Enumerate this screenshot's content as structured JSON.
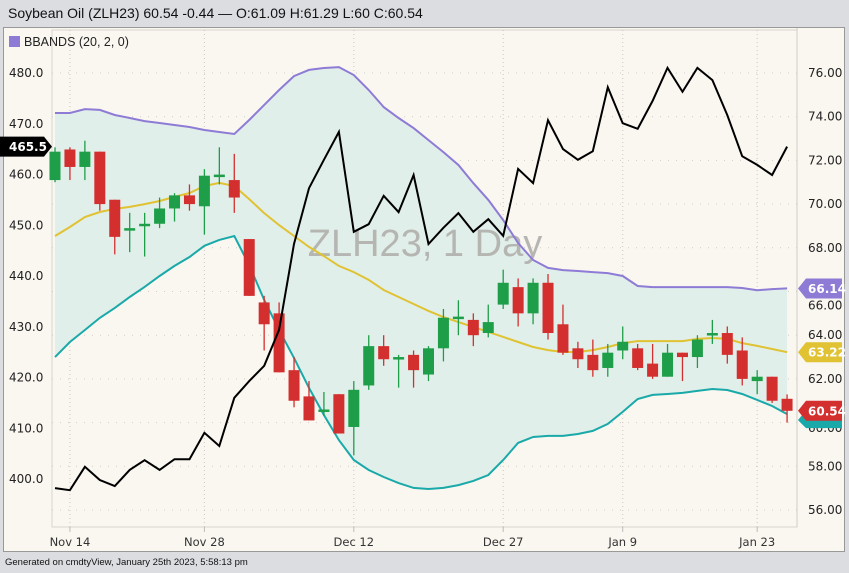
{
  "header": {
    "title": "Soybean Oil (ZLH23) 60.54 -0.44 — O:61.09 H:61.29 L:60 C:60.54"
  },
  "legend": {
    "label": "BBANDS (20, 2, 0)",
    "color": "#8e7bd6"
  },
  "watermark": "ZLH23, 1 Day",
  "footer": "Generated on cmdtyView, January 25th 2023, 5:58:13 pm",
  "colors": {
    "up": "#1e9e49",
    "down": "#d32f2f",
    "upper": "#8e7bd6",
    "middle": "#e0c232",
    "lower": "#1aa9a9",
    "band_fill": "#e1efea",
    "overlay": "#000000",
    "plot_bg": "#faf7f1"
  },
  "chart_data": {
    "type": "candlestick",
    "right_axis": {
      "ylim": [
        55,
        77
      ],
      "ticks": [
        "76.00",
        "74.00",
        "72.00",
        "70.00",
        "68.00",
        "66.00",
        "64.00",
        "62.00",
        "60.00",
        "58.00",
        "56.00"
      ]
    },
    "left_axis": {
      "ylim": [
        395,
        485
      ],
      "ticks": [
        "480.0",
        "470.0",
        "460.0",
        "450.0",
        "440.0",
        "430.0",
        "420.0",
        "410.0",
        "400.0"
      ]
    },
    "x_ticks": [
      {
        "label": "Nov 14",
        "date": "2022-11-14"
      },
      {
        "label": "Nov 28",
        "date": "2022-11-28"
      },
      {
        "label": "Dec 12",
        "date": "2022-12-12"
      },
      {
        "label": "Dec 27",
        "date": "2022-12-27"
      },
      {
        "label": "Jan 9",
        "date": "2023-01-09"
      },
      {
        "label": "Jan 23",
        "date": "2023-01-23"
      }
    ],
    "grid": true,
    "dates": [
      "2022-11-11",
      "2022-11-14",
      "2022-11-15",
      "2022-11-16",
      "2022-11-17",
      "2022-11-18",
      "2022-11-21",
      "2022-11-22",
      "2022-11-23",
      "2022-11-25",
      "2022-11-28",
      "2022-11-29",
      "2022-11-30",
      "2022-12-01",
      "2022-12-02",
      "2022-12-05",
      "2022-12-06",
      "2022-12-07",
      "2022-12-08",
      "2022-12-09",
      "2022-12-12",
      "2022-12-13",
      "2022-12-14",
      "2022-12-15",
      "2022-12-16",
      "2022-12-19",
      "2022-12-20",
      "2022-12-21",
      "2022-12-22",
      "2022-12-23",
      "2022-12-27",
      "2022-12-28",
      "2022-12-29",
      "2022-12-30",
      "2023-01-03",
      "2023-01-04",
      "2023-01-05",
      "2023-01-06",
      "2023-01-09",
      "2023-01-10",
      "2023-01-11",
      "2023-01-12",
      "2023-01-13",
      "2023-01-17",
      "2023-01-18",
      "2023-01-19",
      "2023-01-20",
      "2023-01-23",
      "2023-01-24",
      "2023-01-25"
    ],
    "ohlc": [
      [
        71.1,
        72.6,
        71.0,
        72.4
      ],
      [
        72.5,
        72.6,
        71.1,
        71.7
      ],
      [
        71.7,
        72.9,
        71.1,
        72.4
      ],
      [
        72.4,
        72.4,
        69.7,
        70.0
      ],
      [
        70.2,
        70.2,
        67.7,
        68.5
      ],
      [
        68.8,
        69.6,
        67.8,
        68.9
      ],
      [
        69.0,
        69.6,
        67.6,
        69.1
      ],
      [
        69.1,
        70.3,
        68.9,
        69.8
      ],
      [
        69.8,
        70.5,
        69.2,
        70.4
      ],
      [
        70.4,
        70.9,
        69.7,
        70.0
      ],
      [
        69.9,
        71.6,
        68.6,
        71.3
      ],
      [
        71.3,
        72.6,
        70.9,
        71.35
      ],
      [
        71.1,
        72.3,
        69.6,
        70.3
      ],
      [
        68.4,
        68.4,
        65.8,
        65.8
      ],
      [
        65.5,
        65.8,
        63.3,
        64.5
      ],
      [
        65.0,
        65.5,
        62.3,
        62.3
      ],
      [
        62.4,
        63.0,
        60.7,
        61.0
      ],
      [
        61.2,
        61.9,
        60.1,
        60.1
      ],
      [
        60.5,
        61.4,
        60.3,
        60.6
      ],
      [
        61.3,
        61.3,
        59.5,
        59.5
      ],
      [
        59.8,
        61.9,
        58.5,
        61.5
      ],
      [
        61.7,
        64.0,
        61.5,
        63.5
      ],
      [
        63.5,
        64.0,
        62.6,
        62.9
      ],
      [
        62.9,
        63.1,
        61.6,
        63.0
      ],
      [
        63.1,
        63.3,
        61.6,
        62.4
      ],
      [
        62.2,
        63.5,
        61.9,
        63.4
      ],
      [
        63.4,
        65.2,
        62.8,
        64.8
      ],
      [
        64.8,
        65.6,
        64.0,
        64.85
      ],
      [
        64.7,
        65.0,
        63.5,
        64.0
      ],
      [
        64.1,
        65.4,
        63.9,
        64.6
      ],
      [
        65.4,
        67.0,
        65.2,
        66.4
      ],
      [
        66.2,
        66.6,
        64.4,
        65.0
      ],
      [
        65.0,
        66.6,
        64.5,
        66.4
      ],
      [
        66.4,
        66.8,
        63.8,
        64.1
      ],
      [
        64.5,
        65.4,
        63.1,
        63.2
      ],
      [
        63.4,
        63.7,
        62.5,
        62.9
      ],
      [
        63.1,
        63.8,
        62.1,
        62.4
      ],
      [
        62.5,
        63.6,
        62.1,
        63.2
      ],
      [
        63.3,
        64.4,
        62.9,
        63.7
      ],
      [
        63.4,
        63.6,
        62.4,
        62.5
      ],
      [
        62.7,
        63.6,
        62.0,
        62.1
      ],
      [
        62.1,
        63.6,
        62.1,
        63.2
      ],
      [
        63.2,
        63.2,
        61.9,
        63.0
      ],
      [
        63.0,
        64.0,
        62.5,
        63.8
      ],
      [
        64.0,
        64.7,
        63.6,
        64.1
      ],
      [
        64.1,
        64.4,
        62.7,
        63.1
      ],
      [
        63.3,
        63.9,
        61.7,
        62.0
      ],
      [
        61.9,
        62.4,
        61.3,
        62.1
      ],
      [
        62.1,
        62.1,
        60.9,
        61.0
      ],
      [
        61.09,
        61.29,
        60.0,
        60.54
      ]
    ],
    "bbands_upper": [
      74.17,
      74.17,
      74.35,
      74.31,
      74.08,
      73.94,
      73.8,
      73.71,
      73.62,
      73.53,
      73.39,
      73.3,
      73.21,
      73.85,
      74.54,
      75.22,
      75.86,
      76.14,
      76.23,
      76.27,
      75.91,
      75.22,
      74.44,
      73.94,
      73.48,
      72.93,
      72.38,
      71.79,
      70.96,
      70.19,
      69.27,
      68.22,
      67.44,
      67.08,
      66.98,
      66.94,
      66.89,
      66.84,
      66.71,
      66.25,
      66.2,
      66.2,
      66.2,
      66.2,
      66.2,
      66.2,
      66.16,
      66.06,
      66.11,
      66.14
    ],
    "bbands_middle": [
      68.54,
      68.95,
      69.41,
      69.64,
      69.78,
      69.87,
      70.0,
      70.14,
      70.33,
      70.51,
      70.83,
      70.97,
      70.83,
      70.23,
      69.59,
      69.04,
      68.54,
      68.04,
      67.62,
      67.17,
      66.89,
      66.53,
      66.07,
      65.75,
      65.43,
      65.11,
      64.83,
      64.6,
      64.38,
      64.15,
      63.92,
      63.69,
      63.46,
      63.32,
      63.23,
      63.23,
      63.32,
      63.46,
      63.64,
      63.73,
      63.73,
      63.73,
      63.73,
      63.83,
      63.87,
      63.83,
      63.64,
      63.51,
      63.37,
      63.22
    ],
    "bbands_lower": [
      63.0,
      63.69,
      64.24,
      64.79,
      65.25,
      65.75,
      66.21,
      66.71,
      67.17,
      67.58,
      68.09,
      68.36,
      68.54,
      67.21,
      65.61,
      64.24,
      62.96,
      61.59,
      60.35,
      59.2,
      58.29,
      57.83,
      57.51,
      57.23,
      57.01,
      56.96,
      57.01,
      57.14,
      57.33,
      57.6,
      58.29,
      59.07,
      59.34,
      59.39,
      59.39,
      59.48,
      59.62,
      59.94,
      60.49,
      61.08,
      61.27,
      61.31,
      61.36,
      61.45,
      61.54,
      61.49,
      61.31,
      61.04,
      60.76,
      60.39
    ],
    "overlay_left_axis": [
      398.2,
      397.8,
      402.4,
      399.8,
      398.6,
      401.8,
      403.7,
      401.8,
      403.9,
      403.9,
      409.1,
      406.5,
      416.0,
      419.3,
      422.3,
      429.4,
      446.3,
      457.3,
      462.9,
      468.4,
      448.7,
      450.2,
      455.8,
      452.6,
      459.9,
      446.3,
      449.5,
      452.4,
      448.7,
      451.2,
      447.9,
      461.1,
      458.3,
      470.7,
      465.0,
      462.9,
      464.6,
      477.2,
      470.1,
      469.0,
      474.5,
      481.0,
      476.3,
      481.0,
      478.6,
      471.7,
      463.6,
      461.9,
      459.9,
      465.5
    ],
    "last_labels": {
      "overlay": "465.5",
      "upper": "66.14",
      "middle": "63.22",
      "close": "60.54"
    }
  }
}
